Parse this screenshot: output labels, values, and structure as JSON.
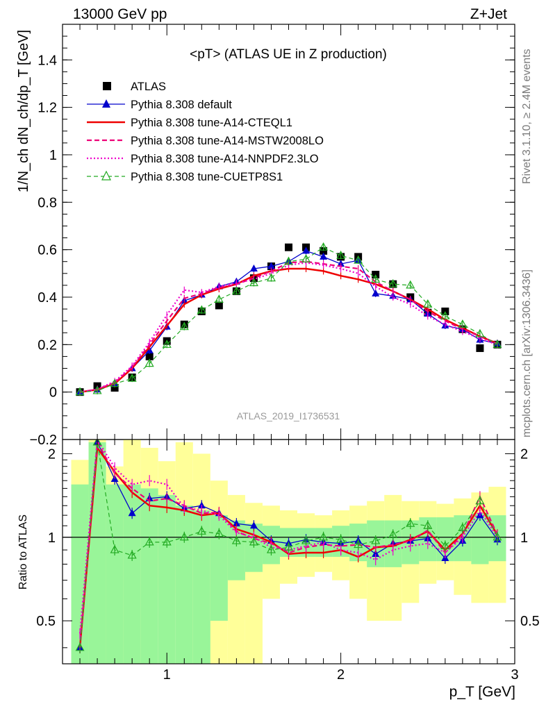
{
  "header": {
    "left_label": "13000 GeV pp",
    "right_label": "Z+Jet",
    "side_label_1": "Rivet 3.1.10, ≥ 2.4M events",
    "side_label_2": "mcplots.cern.ch [arXiv:1306.3436]",
    "watermark": "ATLAS_2019_I1736531"
  },
  "chart_data": [
    {
      "type": "line",
      "title": "<pT> (ATLAS UE in Z production)",
      "xlabel": "p_T [GeV]",
      "ylabel": "1/N_ch dN_ch/dp_T [GeV]",
      "xlim": [
        0.4,
        3.0
      ],
      "ylim": [
        -0.2,
        1.55
      ],
      "y_ticks": [
        "−0.2",
        "0",
        "0.2",
        "0.4",
        "0.6",
        "0.8",
        "1",
        "1.2",
        "1.4"
      ],
      "y_tick_values": [
        -0.2,
        0,
        0.2,
        0.4,
        0.6,
        0.8,
        1.0,
        1.2,
        1.4
      ],
      "legend_position": "top-left",
      "x": [
        0.5,
        0.6,
        0.7,
        0.8,
        0.9,
        1.0,
        1.1,
        1.2,
        1.3,
        1.4,
        1.5,
        1.6,
        1.7,
        1.8,
        1.9,
        2.0,
        2.1,
        2.2,
        2.3,
        2.4,
        2.5,
        2.6,
        2.7,
        2.8,
        2.9
      ],
      "series": [
        {
          "name": "ATLAS",
          "style": "data",
          "color": "#000000",
          "values": [
            0.0,
            0.025,
            0.018,
            0.062,
            0.15,
            0.215,
            0.285,
            0.34,
            0.365,
            0.425,
            0.48,
            0.53,
            0.61,
            0.61,
            0.595,
            0.57,
            0.57,
            0.495,
            0.455,
            0.4,
            0.335,
            0.34,
            0.265,
            0.185,
            0.2
          ]
        },
        {
          "name": "Pythia 8.308 default",
          "style": "solid-triangle",
          "color": "#0000cc",
          "values": [
            0.0,
            0.01,
            0.035,
            0.1,
            0.175,
            0.275,
            0.385,
            0.41,
            0.445,
            0.465,
            0.52,
            0.53,
            0.55,
            0.595,
            0.57,
            0.54,
            0.555,
            0.415,
            0.405,
            0.39,
            0.33,
            0.28,
            0.265,
            0.22,
            0.205
          ]
        },
        {
          "name": "Pythia 8.308 tune-A14-CTEQL1",
          "style": "solid",
          "color": "#ee0000",
          "values": [
            0.0,
            0.01,
            0.035,
            0.1,
            0.19,
            0.28,
            0.37,
            0.41,
            0.435,
            0.455,
            0.49,
            0.51,
            0.52,
            0.52,
            0.51,
            0.49,
            0.475,
            0.455,
            0.425,
            0.39,
            0.35,
            0.305,
            0.27,
            0.235,
            0.205
          ]
        },
        {
          "name": "Pythia 8.308 tune-A14-MSTW2008LO",
          "style": "dashed",
          "color": "#ee0077",
          "values": [
            0.0,
            0.012,
            0.04,
            0.105,
            0.2,
            0.3,
            0.395,
            0.415,
            0.44,
            0.455,
            0.48,
            0.51,
            0.545,
            0.55,
            0.54,
            0.53,
            0.52,
            0.465,
            0.425,
            0.39,
            0.34,
            0.3,
            0.265,
            0.235,
            0.205
          ]
        },
        {
          "name": "Pythia 8.308 tune-A14-NNPDF2.3LO",
          "style": "dotted",
          "color": "#ee00cc",
          "values": [
            0.0,
            0.012,
            0.045,
            0.11,
            0.21,
            0.325,
            0.43,
            0.42,
            0.445,
            0.46,
            0.475,
            0.5,
            0.535,
            0.545,
            0.535,
            0.52,
            0.5,
            0.445,
            0.4,
            0.37,
            0.32,
            0.285,
            0.255,
            0.225,
            0.2
          ]
        },
        {
          "name": "Pythia 8.308 tune-CUETP8S1",
          "style": "dashed-open-triangle",
          "color": "#22aa22",
          "values": [
            0.0,
            0.005,
            0.035,
            0.057,
            0.12,
            0.2,
            0.275,
            0.345,
            0.39,
            0.425,
            0.46,
            0.48,
            0.55,
            0.56,
            0.61,
            0.575,
            0.555,
            0.475,
            0.455,
            0.45,
            0.37,
            0.32,
            0.285,
            0.245,
            0.2
          ]
        }
      ]
    },
    {
      "type": "line",
      "title": "",
      "xlabel": "p_T [GeV]",
      "ylabel": "Ratio to ATLAS",
      "xlim": [
        0.4,
        3.0
      ],
      "ylim": [
        0.35,
        2.25
      ],
      "y_ticks": [
        "0.5",
        "1",
        "2"
      ],
      "y_tick_values": [
        0.5,
        1.0,
        2.0
      ],
      "x_ticks": [
        "1",
        "2",
        "3"
      ],
      "x_tick_values": [
        1,
        2,
        3
      ],
      "band_inner": [
        [
          0.3,
          1.55
        ],
        [
          0.3,
          2.2
        ],
        [
          0.3,
          1.55
        ],
        [
          0.3,
          1.55
        ],
        [
          0.3,
          1.5
        ],
        [
          0.3,
          1.42
        ],
        [
          0.3,
          1.3
        ],
        [
          0.3,
          1.25
        ],
        [
          0.5,
          1.2
        ],
        [
          0.7,
          1.15
        ],
        [
          0.75,
          1.12
        ],
        [
          0.8,
          1.1
        ],
        [
          0.85,
          1.08
        ],
        [
          0.85,
          1.08
        ],
        [
          0.85,
          1.08
        ],
        [
          0.85,
          1.1
        ],
        [
          0.82,
          1.12
        ],
        [
          0.78,
          1.15
        ],
        [
          0.78,
          1.15
        ],
        [
          0.8,
          1.15
        ],
        [
          0.82,
          1.18
        ],
        [
          0.82,
          1.18
        ],
        [
          0.82,
          1.2
        ],
        [
          0.8,
          1.22
        ],
        [
          0.82,
          1.2
        ]
      ],
      "band_outer": [
        [
          0.3,
          1.9
        ],
        [
          0.3,
          2.3
        ],
        [
          0.3,
          1.8
        ],
        [
          0.3,
          2.3
        ],
        [
          0.3,
          2.1
        ],
        [
          0.63,
          1.88
        ],
        [
          0.3,
          2.2
        ],
        [
          0.3,
          2.0
        ],
        [
          0.3,
          1.6
        ],
        [
          0.3,
          1.42
        ],
        [
          0.3,
          1.33
        ],
        [
          0.6,
          1.3
        ],
        [
          0.68,
          1.25
        ],
        [
          0.72,
          1.22
        ],
        [
          0.75,
          1.2
        ],
        [
          0.7,
          1.25
        ],
        [
          0.6,
          1.3
        ],
        [
          0.5,
          1.35
        ],
        [
          0.5,
          1.42
        ],
        [
          0.58,
          1.35
        ],
        [
          0.68,
          1.35
        ],
        [
          0.7,
          1.32
        ],
        [
          0.62,
          1.38
        ],
        [
          0.58,
          1.45
        ],
        [
          0.58,
          1.52
        ]
      ],
      "series": [
        {
          "name": "Pythia 8.308 default",
          "color": "#0000cc",
          "values": [
            0.4,
            2.2,
            1.62,
            1.22,
            1.38,
            1.4,
            1.27,
            1.3,
            1.22,
            1.12,
            1.1,
            0.97,
            0.95,
            0.98,
            0.96,
            0.95,
            0.97,
            0.87,
            0.95,
            0.97,
            0.99,
            0.84,
            0.97,
            1.2,
            0.98
          ]
        },
        {
          "name": "Pythia 8.308 tune-A14-CTEQL1",
          "color": "#ee0000",
          "values": [
            0.4,
            2.1,
            1.72,
            1.45,
            1.3,
            1.28,
            1.25,
            1.2,
            1.22,
            1.07,
            1.02,
            0.96,
            0.87,
            0.88,
            0.88,
            0.9,
            0.85,
            0.92,
            0.93,
            0.98,
            1.05,
            0.9,
            1.03,
            1.3,
            1.02
          ]
        },
        {
          "name": "Pythia 8.308 tune-A14-MSTW2008LO",
          "color": "#ee0077",
          "values": [
            0.4,
            2.2,
            1.7,
            1.5,
            1.35,
            1.38,
            1.3,
            1.22,
            1.23,
            1.05,
            0.99,
            0.95,
            0.88,
            0.92,
            0.94,
            0.93,
            0.94,
            0.92,
            0.94,
            0.97,
            1.06,
            0.88,
            1.02,
            1.4,
            1.02
          ]
        },
        {
          "name": "Pythia 8.308 tune-A14-NNPDF2.3LO",
          "color": "#ee00cc",
          "values": [
            0.45,
            2.25,
            1.78,
            1.55,
            1.6,
            1.55,
            1.28,
            1.25,
            1.2,
            1.04,
            1.0,
            0.92,
            0.9,
            0.93,
            0.96,
            0.9,
            0.88,
            0.83,
            0.9,
            0.93,
            0.95,
            0.88,
            1.0,
            1.25,
            1.0
          ]
        },
        {
          "name": "Pythia 8.308 tune-CUETP8S1",
          "color": "#22aa22",
          "values": [
            0.4,
            2.2,
            0.9,
            0.86,
            0.96,
            0.96,
            1.0,
            1.05,
            1.03,
            0.97,
            0.96,
            0.9,
            0.92,
            0.97,
            1.0,
            0.98,
            0.94,
            0.97,
            1.02,
            1.12,
            1.1,
            0.93,
            1.08,
            1.35,
            1.0
          ]
        }
      ]
    }
  ]
}
